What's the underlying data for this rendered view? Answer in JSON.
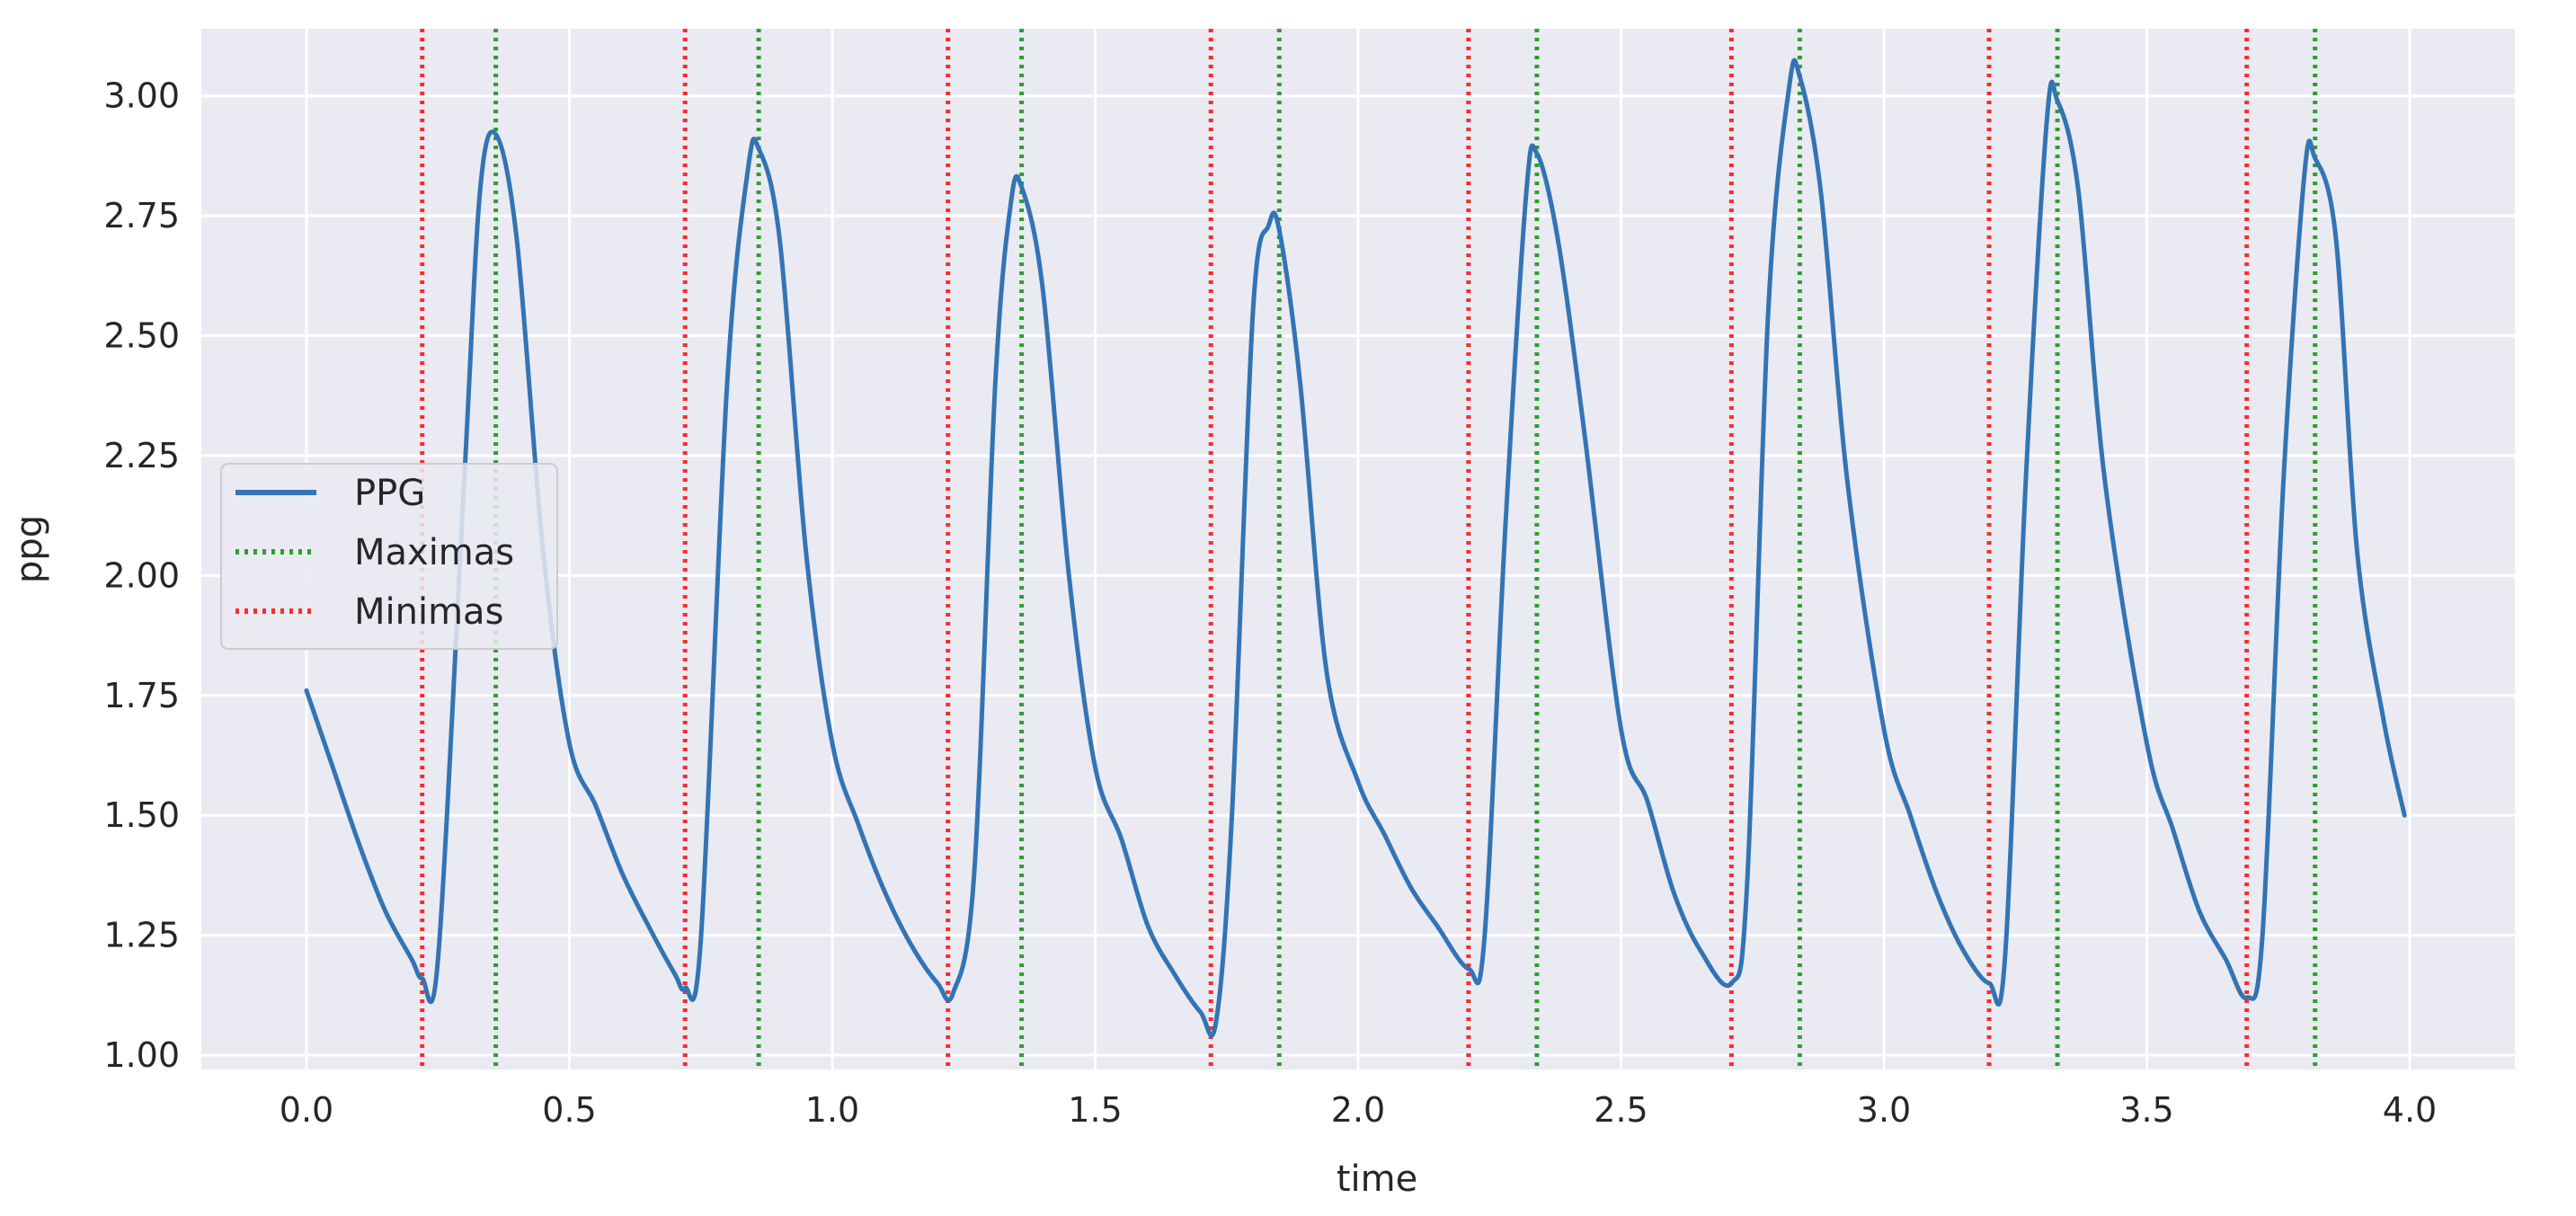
{
  "chart_data": {
    "type": "line",
    "title": "",
    "xlabel": "time",
    "ylabel": "ppg",
    "xlim": [
      -0.2,
      4.2
    ],
    "ylim": [
      0.97,
      3.14
    ],
    "xticks": [
      0.0,
      0.5,
      1.0,
      1.5,
      2.0,
      2.5,
      3.0,
      3.5,
      4.0
    ],
    "xtick_labels": [
      "0.0",
      "0.5",
      "1.0",
      "1.5",
      "2.0",
      "2.5",
      "3.0",
      "3.5",
      "4.0"
    ],
    "yticks": [
      1.0,
      1.25,
      1.5,
      1.75,
      2.0,
      2.25,
      2.5,
      2.75,
      3.0
    ],
    "ytick_labels": [
      "1.00",
      "1.25",
      "1.50",
      "1.75",
      "2.00",
      "2.25",
      "2.50",
      "2.75",
      "3.00"
    ],
    "grid": true,
    "legend_position": "center-left",
    "legend": [
      {
        "label": "PPG",
        "style": "solid",
        "color": "#3274b4"
      },
      {
        "label": "Maximas",
        "style": "dotted",
        "color": "#2ca02c"
      },
      {
        "label": "Minimas",
        "style": "dotted",
        "color": "#ff2a2a"
      }
    ],
    "series": [
      {
        "name": "PPG",
        "color": "#3274b4",
        "x": [
          0.0,
          0.05,
          0.1,
          0.15,
          0.2,
          0.22,
          0.25,
          0.3,
          0.33,
          0.36,
          0.4,
          0.45,
          0.5,
          0.55,
          0.6,
          0.65,
          0.7,
          0.72,
          0.75,
          0.8,
          0.84,
          0.86,
          0.9,
          0.95,
          1.0,
          1.05,
          1.1,
          1.15,
          1.2,
          1.23,
          1.27,
          1.31,
          1.34,
          1.36,
          1.4,
          1.45,
          1.5,
          1.55,
          1.6,
          1.65,
          1.7,
          1.73,
          1.76,
          1.8,
          1.83,
          1.85,
          1.89,
          1.94,
          2.0,
          2.05,
          2.1,
          2.15,
          2.21,
          2.24,
          2.28,
          2.32,
          2.34,
          2.38,
          2.43,
          2.5,
          2.55,
          2.6,
          2.65,
          2.71,
          2.74,
          2.78,
          2.82,
          2.84,
          2.88,
          2.93,
          3.0,
          3.05,
          3.1,
          3.15,
          3.2,
          3.23,
          3.27,
          3.31,
          3.33,
          3.37,
          3.42,
          3.5,
          3.55,
          3.6,
          3.65,
          3.69,
          3.72,
          3.76,
          3.8,
          3.82,
          3.86,
          3.9,
          3.95,
          3.99
        ],
        "y": [
          1.76,
          1.6,
          1.44,
          1.3,
          1.2,
          1.16,
          1.2,
          2.2,
          2.8,
          2.92,
          2.7,
          2.05,
          1.65,
          1.52,
          1.38,
          1.27,
          1.17,
          1.14,
          1.24,
          2.4,
          2.85,
          2.89,
          2.7,
          2.05,
          1.65,
          1.48,
          1.34,
          1.23,
          1.15,
          1.13,
          1.38,
          2.4,
          2.78,
          2.81,
          2.6,
          2.0,
          1.6,
          1.45,
          1.27,
          1.17,
          1.09,
          1.07,
          1.5,
          2.55,
          2.73,
          2.72,
          2.4,
          1.8,
          1.57,
          1.46,
          1.35,
          1.27,
          1.18,
          1.24,
          2.1,
          2.8,
          2.88,
          2.7,
          2.3,
          1.68,
          1.53,
          1.34,
          1.22,
          1.15,
          1.36,
          2.55,
          3.02,
          3.04,
          2.8,
          2.2,
          1.68,
          1.5,
          1.34,
          1.22,
          1.15,
          1.2,
          2.2,
          2.95,
          2.99,
          2.8,
          2.2,
          1.65,
          1.47,
          1.3,
          1.2,
          1.12,
          1.25,
          2.2,
          2.84,
          2.87,
          2.7,
          2.05,
          1.7,
          1.5
        ]
      }
    ],
    "maxima_x": [
      0.36,
      0.86,
      1.36,
      1.85,
      2.34,
      2.84,
      3.33,
      3.82
    ],
    "minima_x": [
      0.22,
      0.72,
      1.22,
      1.72,
      2.21,
      2.71,
      3.2,
      3.69
    ]
  }
}
